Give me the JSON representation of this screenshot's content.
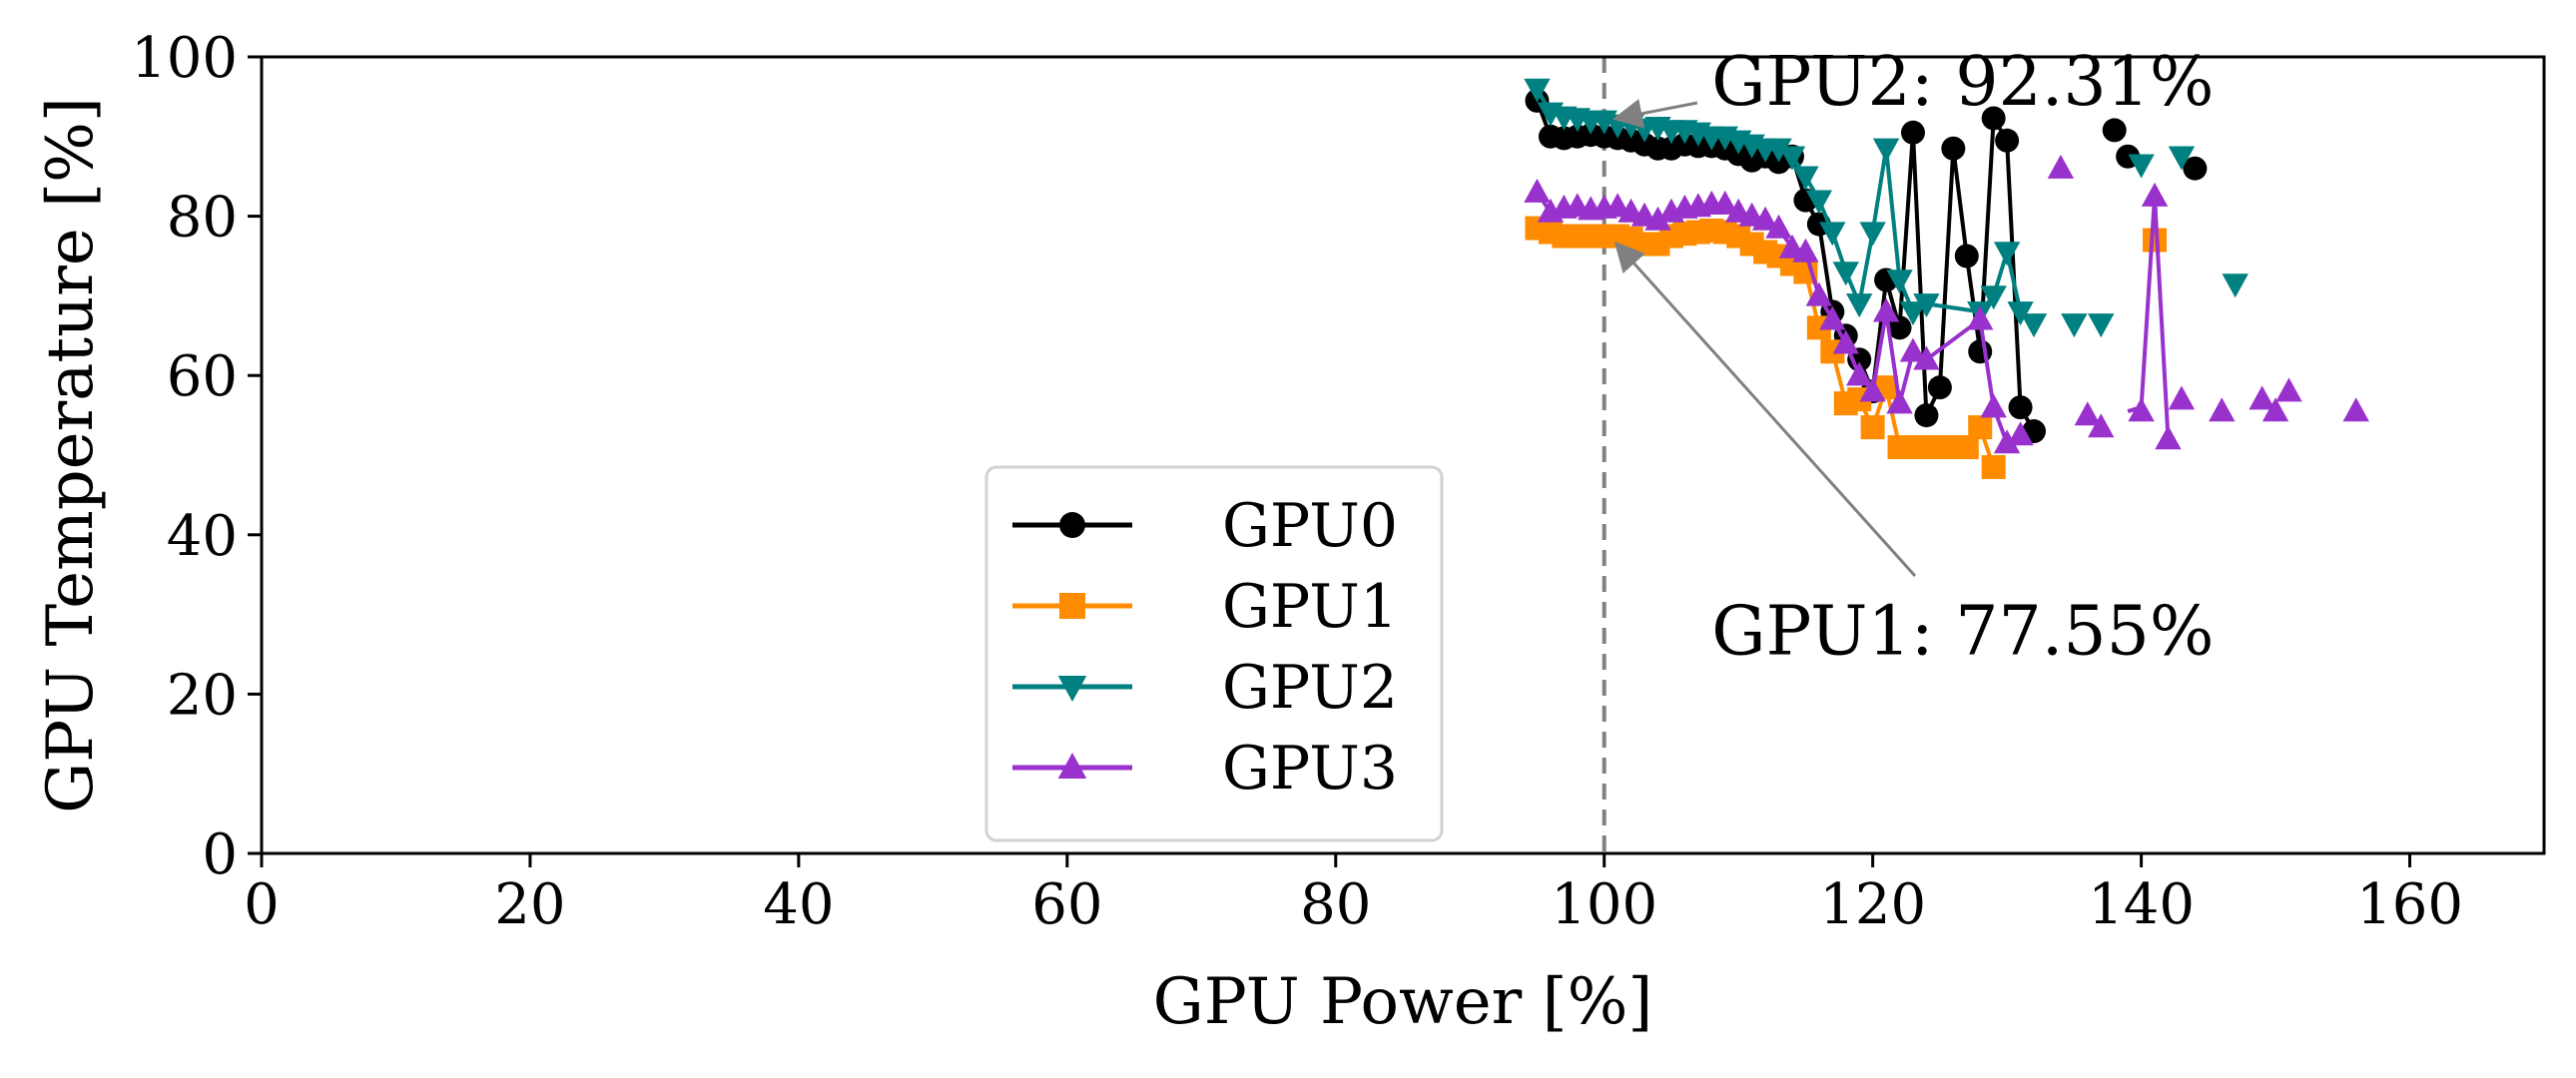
{
  "chart_data": {
    "type": "line",
    "title": "",
    "xlabel": "GPU Power [%]",
    "ylabel": "GPU Temperature [%]",
    "xlim": [
      0,
      170
    ],
    "ylim": [
      0,
      100
    ],
    "xticks": [
      0,
      20,
      40,
      60,
      80,
      100,
      120,
      140,
      160
    ],
    "yticks": [
      0,
      20,
      40,
      60,
      80,
      100
    ],
    "grid": false,
    "legend_position": "lower-center",
    "reference_line": {
      "x": 100,
      "style": "dashed",
      "color": "#808080"
    },
    "annotations": [
      {
        "text": "GPU2: 92.31%",
        "point": [
          100,
          92.31
        ],
        "text_at": [
          108,
          97
        ]
      },
      {
        "text": "GPU1: 77.55%",
        "point": [
          100,
          77.55
        ],
        "text_at": [
          108,
          28
        ]
      }
    ],
    "series": [
      {
        "name": "GPU0",
        "color": "#000000",
        "marker": "circle",
        "points": [
          [
            95,
            94.5
          ],
          [
            96,
            90
          ],
          [
            97,
            89.8
          ],
          [
            98,
            90
          ],
          [
            99,
            90.2
          ],
          [
            100,
            90
          ],
          [
            101,
            89.8
          ],
          [
            102,
            89.5
          ],
          [
            103,
            89
          ],
          [
            104,
            88.5
          ],
          [
            105,
            88.5
          ],
          [
            106,
            89
          ],
          [
            107,
            88.8
          ],
          [
            108,
            88.8
          ],
          [
            109,
            88.5
          ],
          [
            110,
            87.8
          ],
          [
            111,
            87
          ],
          [
            112,
            87.5
          ],
          [
            113,
            86.8
          ],
          [
            114,
            87.5
          ],
          [
            115,
            82
          ],
          [
            116,
            79
          ],
          [
            117,
            68
          ],
          [
            118,
            65
          ],
          [
            119,
            62
          ],
          [
            120,
            58
          ],
          [
            121,
            72
          ],
          [
            122,
            66
          ],
          [
            123,
            90.5
          ],
          [
            124,
            55
          ],
          [
            125,
            58.5
          ],
          [
            126,
            88.5
          ],
          [
            127,
            75
          ],
          [
            128,
            63
          ],
          [
            129,
            92.3
          ],
          [
            130,
            89.5
          ],
          [
            131,
            56
          ],
          [
            132,
            53
          ]
        ],
        "extra_points": [
          [
            138,
            90.8
          ],
          [
            139,
            87.5
          ],
          [
            144,
            86
          ]
        ]
      },
      {
        "name": "GPU1",
        "color": "#ff8c00",
        "marker": "square",
        "points": [
          [
            95,
            78.5
          ],
          [
            96,
            78
          ],
          [
            97,
            77.5
          ],
          [
            98,
            77.5
          ],
          [
            99,
            77.5
          ],
          [
            100,
            77.5
          ],
          [
            101,
            77.5
          ],
          [
            102,
            77.2
          ],
          [
            103,
            76.5
          ],
          [
            104,
            76.5
          ],
          [
            105,
            77.5
          ],
          [
            106,
            77.8
          ],
          [
            107,
            78
          ],
          [
            108,
            78.2
          ],
          [
            109,
            78
          ],
          [
            110,
            77.5
          ],
          [
            111,
            76.5
          ],
          [
            112,
            75.5
          ],
          [
            113,
            75
          ],
          [
            114,
            74
          ],
          [
            115,
            73
          ],
          [
            116,
            66
          ],
          [
            117,
            63
          ],
          [
            118,
            56.5
          ],
          [
            119,
            57
          ],
          [
            120,
            53.5
          ],
          [
            121,
            58.5
          ],
          [
            122,
            51
          ],
          [
            123,
            51
          ],
          [
            124,
            51
          ],
          [
            125,
            51
          ],
          [
            126,
            51
          ],
          [
            127,
            51
          ],
          [
            128,
            53.5
          ],
          [
            129,
            48.5
          ]
        ],
        "extra_points": [
          [
            141,
            77
          ]
        ]
      },
      {
        "name": "GPU2",
        "color": "#008080",
        "marker": "triangle-down",
        "points": [
          [
            95,
            96
          ],
          [
            96,
            93
          ],
          [
            97,
            92.5
          ],
          [
            98,
            92.3
          ],
          [
            99,
            92
          ],
          [
            100,
            92
          ],
          [
            101,
            91.5
          ],
          [
            102,
            91.5
          ],
          [
            103,
            91
          ],
          [
            104,
            91.2
          ],
          [
            105,
            90.8
          ],
          [
            106,
            90.8
          ],
          [
            107,
            90.5
          ],
          [
            108,
            90
          ],
          [
            109,
            90
          ],
          [
            110,
            89.5
          ],
          [
            111,
            89
          ],
          [
            112,
            88.5
          ],
          [
            113,
            88.5
          ],
          [
            114,
            87.5
          ],
          [
            115,
            85
          ],
          [
            116,
            82
          ],
          [
            117,
            78
          ],
          [
            118,
            73
          ],
          [
            119,
            69
          ],
          [
            120,
            78
          ],
          [
            121,
            88.5
          ],
          [
            122,
            72
          ],
          [
            123,
            68
          ],
          [
            124,
            69
          ],
          [
            128,
            68
          ],
          [
            129,
            70
          ],
          [
            130,
            75.5
          ],
          [
            131,
            68
          ]
        ],
        "extra_points": [
          [
            132,
            66.5
          ],
          [
            135,
            66.5
          ],
          [
            137,
            66.5
          ],
          [
            140,
            86.5
          ],
          [
            143,
            87.5
          ],
          [
            147,
            71.5
          ]
        ]
      },
      {
        "name": "GPU3",
        "color": "#9932cc",
        "marker": "triangle-up",
        "points": [
          [
            95,
            83
          ],
          [
            96,
            80.5
          ],
          [
            97,
            81
          ],
          [
            98,
            81.2
          ],
          [
            99,
            80.8
          ],
          [
            100,
            81
          ],
          [
            101,
            81.2
          ],
          [
            102,
            80.5
          ],
          [
            103,
            80
          ],
          [
            104,
            79.5
          ],
          [
            105,
            80.5
          ],
          [
            106,
            81
          ],
          [
            107,
            81.2
          ],
          [
            108,
            81.5
          ],
          [
            109,
            81.5
          ],
          [
            110,
            80.5
          ],
          [
            111,
            80
          ],
          [
            112,
            79.5
          ],
          [
            113,
            78.5
          ],
          [
            114,
            76
          ],
          [
            115,
            75.5
          ],
          [
            116,
            70
          ],
          [
            117,
            67
          ],
          [
            118,
            64
          ],
          [
            119,
            60
          ],
          [
            120,
            58
          ],
          [
            121,
            68
          ],
          [
            122,
            56.5
          ],
          [
            123,
            63
          ],
          [
            124,
            62
          ],
          [
            128,
            67
          ],
          [
            129,
            56
          ],
          [
            130,
            51.5
          ],
          [
            131,
            52.5
          ]
        ],
        "extra_points": [
          [
            134,
            86
          ],
          [
            136,
            55
          ],
          [
            137,
            53.5
          ],
          [
            140,
            55.5
          ],
          [
            141,
            82.5
          ],
          [
            142,
            52
          ],
          [
            143,
            57
          ],
          [
            146,
            55.5
          ],
          [
            149,
            57
          ],
          [
            150,
            55.5
          ],
          [
            151,
            58
          ],
          [
            156,
            55.5
          ]
        ],
        "spike": [
          [
            139,
            55.5
          ],
          [
            140,
            56
          ],
          [
            141,
            82.5
          ],
          [
            142,
            52
          ]
        ]
      }
    ]
  }
}
